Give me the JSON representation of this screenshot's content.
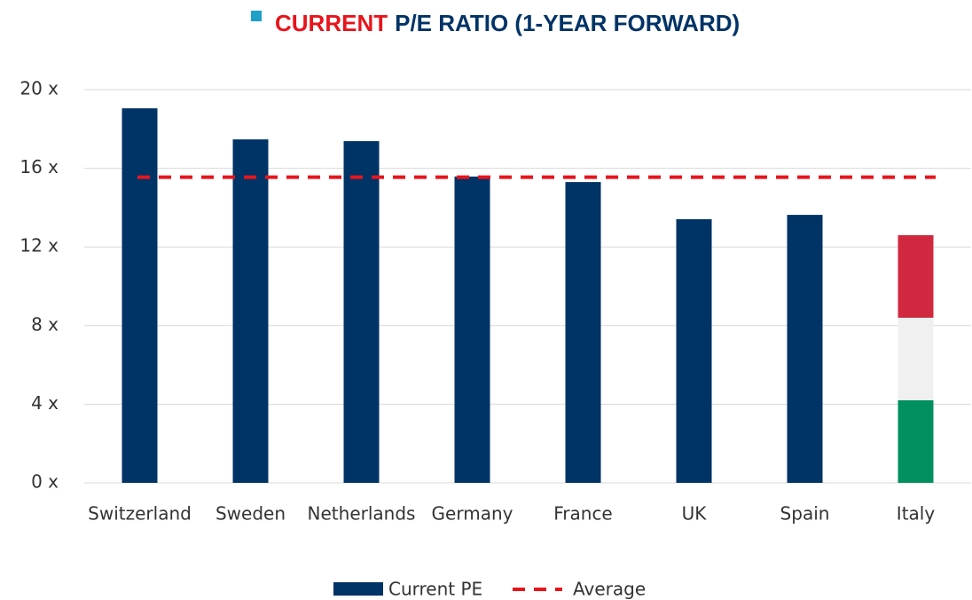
{
  "chart_data": {
    "type": "bar",
    "title": [
      "CURRENT",
      "P/E RATIO (1-YEAR FORWARD)"
    ],
    "title_colors": [
      "#e8141c",
      "#003366"
    ],
    "title_marker_color": "#1ea0c8",
    "categories": [
      "Switzerland",
      "Sweden",
      "Netherlands",
      "Germany",
      "France",
      "UK",
      "Spain",
      "Italy"
    ],
    "series": [
      {
        "name": "Current PE",
        "color": "#003366",
        "values": [
          19.05,
          17.47,
          17.38,
          15.58,
          15.3,
          13.41,
          13.63,
          12.6
        ]
      }
    ],
    "bar_colors": [
      "#003366",
      "#003366",
      "#003366",
      "#003366",
      "#003366",
      "#003366",
      "#003366",
      [
        "#009060",
        "#f0f0f0",
        "#d0293f"
      ]
    ],
    "average": {
      "name": "Average",
      "value": 15.55,
      "color": "#e8141c"
    },
    "ylim": [
      0,
      20
    ],
    "yticks": [
      {
        "value": 0,
        "label": "0 x"
      },
      {
        "value": 4,
        "label": "4 x"
      },
      {
        "value": 8,
        "label": "8 x"
      },
      {
        "value": 12,
        "label": "12 x"
      },
      {
        "value": 16,
        "label": "16 x"
      },
      {
        "value": 20,
        "label": "20 x"
      }
    ],
    "grid": true,
    "legend": "bottom"
  }
}
